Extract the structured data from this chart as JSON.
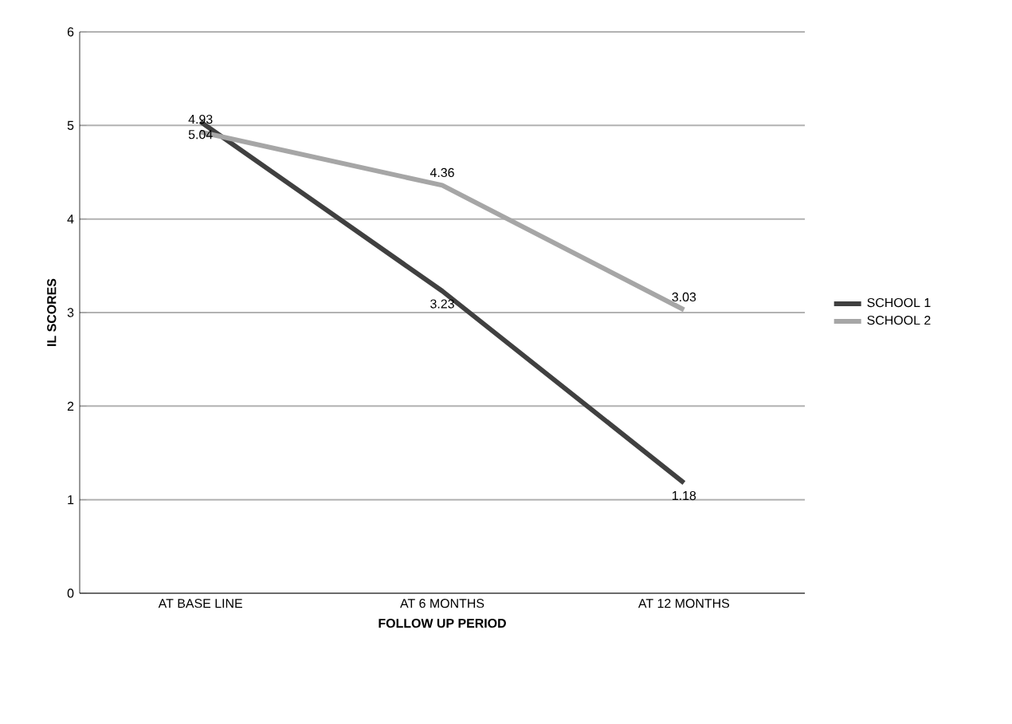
{
  "chart_data": {
    "type": "line",
    "xlabel": "FOLLOW UP PERIOD",
    "ylabel": "IL SCORES",
    "categories": [
      "AT BASE LINE",
      "AT 6 MONTHS",
      "AT 12 MONTHS"
    ],
    "series": [
      {
        "name": "SCHOOL 1",
        "color": "#404040",
        "values": [
          5.04,
          3.23,
          1.18
        ]
      },
      {
        "name": "SCHOOL 2",
        "color": "#a6a6a6",
        "values": [
          4.93,
          4.36,
          3.03
        ]
      }
    ],
    "ylim": [
      0,
      6
    ],
    "yticks": [
      0,
      1,
      2,
      3,
      4,
      5,
      6
    ],
    "grid": "y",
    "legend": "right",
    "marker": "none",
    "line_style": "solid",
    "data_labels": true
  }
}
